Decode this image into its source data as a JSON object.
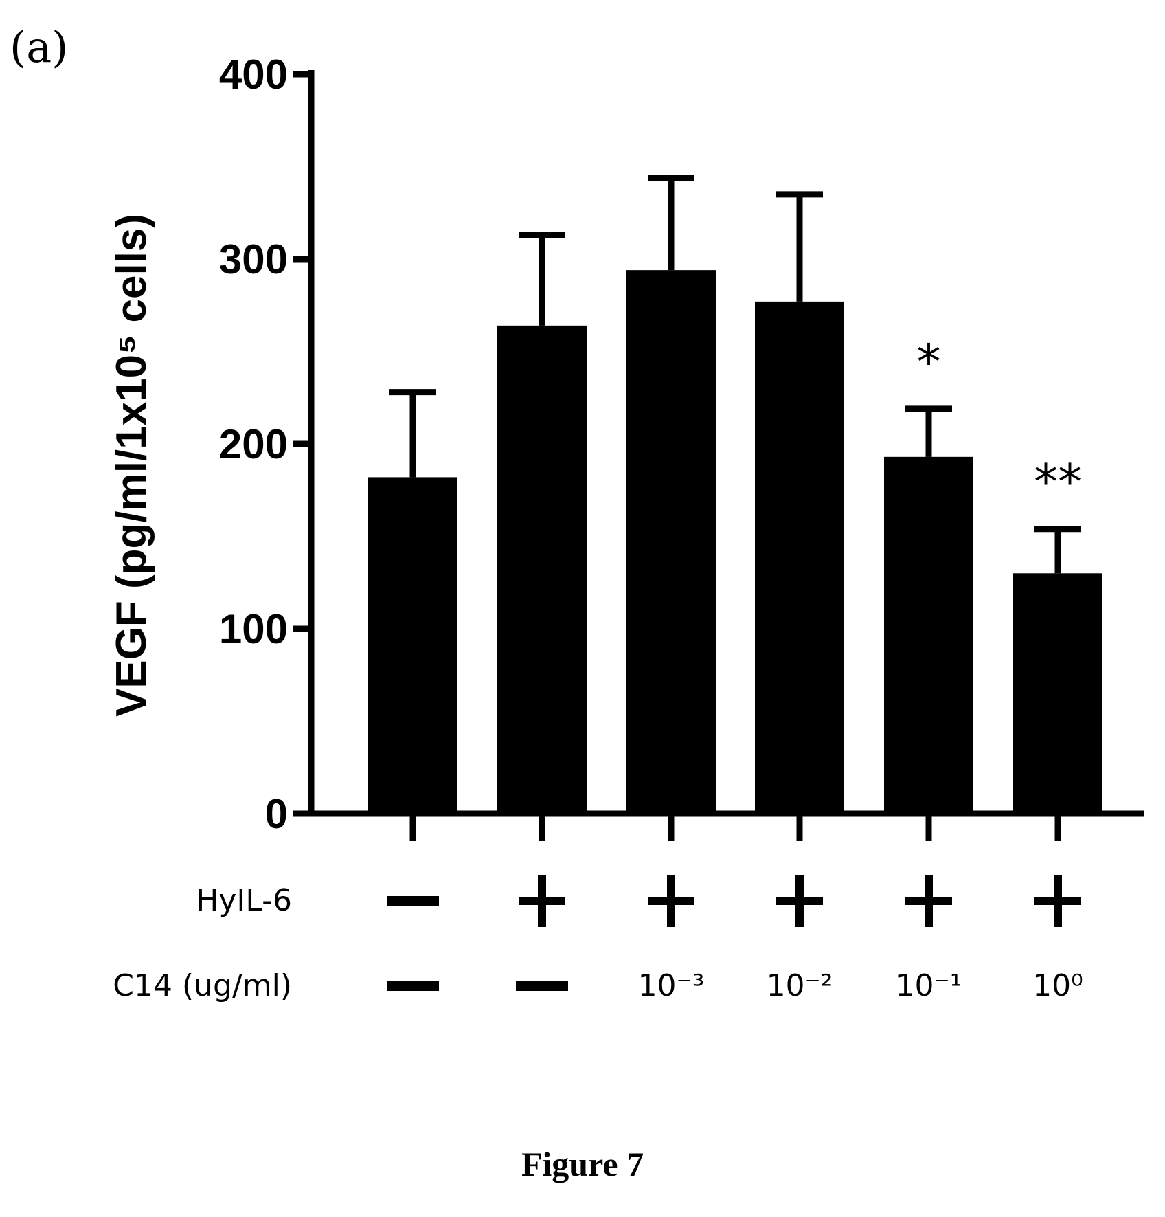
{
  "panel_label": "(a)",
  "caption": "Figure 7",
  "chart_data": {
    "type": "bar",
    "ylabel": "VEGF (pg/ml/1x10⁵ cells)",
    "ylim": [
      0,
      400
    ],
    "yticks": [
      0,
      100,
      200,
      300,
      400
    ],
    "grid": false,
    "bar_color": "#000000",
    "rows": [
      {
        "label": "HyIL-6",
        "values": [
          "−",
          "+",
          "+",
          "+",
          "+",
          "+"
        ]
      },
      {
        "label": "C14 (ug/ml)",
        "values": [
          "−",
          "−",
          "10⁻³",
          "10⁻²",
          "10⁻¹",
          "10⁰"
        ]
      }
    ],
    "values": [
      182,
      264,
      294,
      277,
      193,
      130
    ],
    "errors": [
      46,
      49,
      50,
      58,
      26,
      24
    ],
    "significance": [
      "",
      "",
      "",
      "",
      "*",
      "**"
    ]
  }
}
